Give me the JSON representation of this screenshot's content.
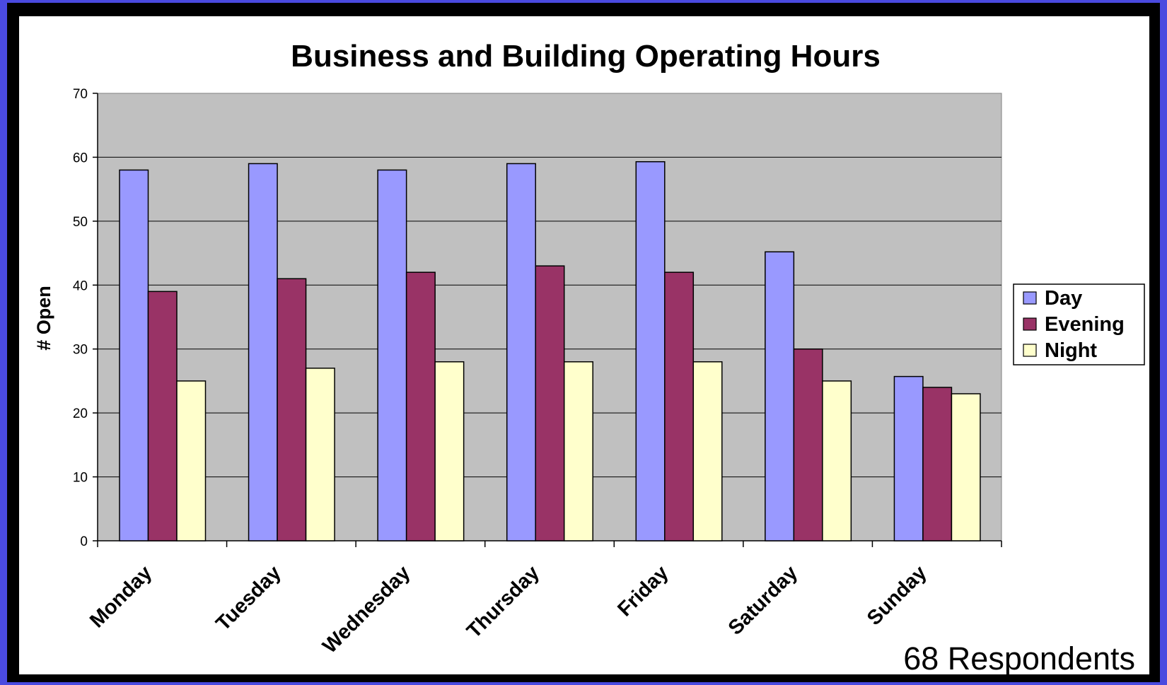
{
  "chart_data": {
    "type": "bar",
    "title": "Business and Building Operating Hours",
    "xlabel": "",
    "ylabel": "# Open",
    "ylim": [
      0,
      70
    ],
    "yticks": [
      0,
      10,
      20,
      30,
      40,
      50,
      60,
      70
    ],
    "grid": true,
    "legend_position": "right",
    "categories": [
      "Monday",
      "Tuesday",
      "Wednesday",
      "Thursday",
      "Friday",
      "Saturday",
      "Sunday"
    ],
    "series": [
      {
        "name": "Day",
        "color": "#9999ff",
        "values": [
          58,
          59,
          58,
          59,
          59.3,
          45.2,
          25.7
        ]
      },
      {
        "name": "Evening",
        "color": "#993366",
        "values": [
          39,
          41,
          42,
          43,
          42,
          30,
          24
        ]
      },
      {
        "name": "Night",
        "color": "#ffffcc",
        "values": [
          25,
          27,
          28,
          28,
          28,
          25,
          23
        ]
      }
    ],
    "plot_background": "#c0c0c0",
    "annotation": "68 Respondents"
  }
}
